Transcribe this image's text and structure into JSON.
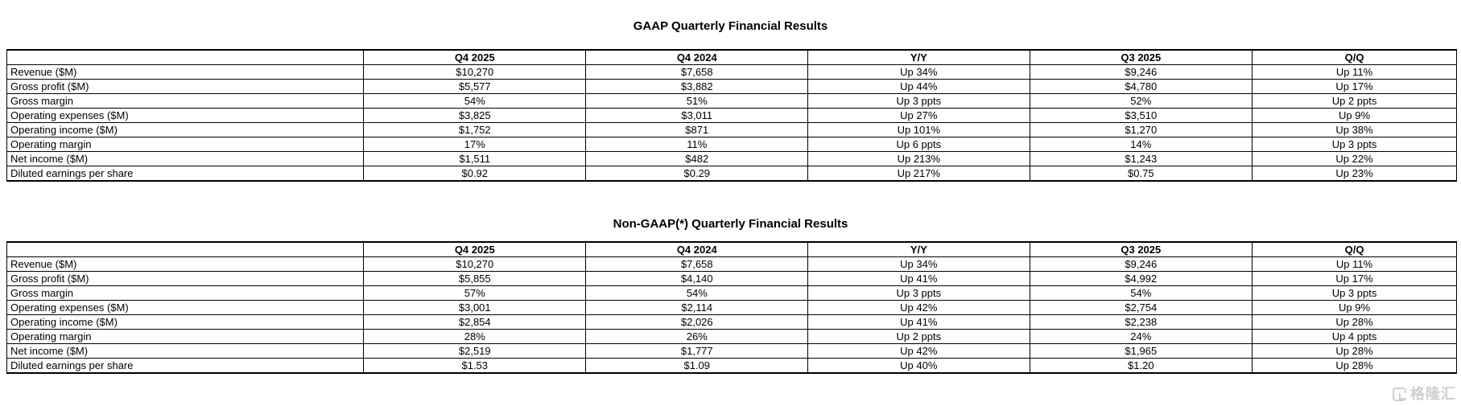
{
  "watermark": {
    "text": "格隆汇",
    "color": "#cbcbcb"
  },
  "tables": [
    {
      "title": "GAAP Quarterly Financial Results",
      "columns": [
        "",
        "Q4 2025",
        "Q4 2024",
        "Y/Y",
        "Q3 2025",
        "Q/Q"
      ],
      "rows": [
        [
          "Revenue ($M)",
          "$10,270",
          "$7,658",
          "Up 34%",
          "$9,246",
          "Up 11%"
        ],
        [
          "Gross profit ($M)",
          "$5,577",
          "$3,882",
          "Up 44%",
          "$4,780",
          "Up 17%"
        ],
        [
          "Gross margin",
          "54%",
          "51%",
          "Up 3 ppts",
          "52%",
          "Up 2 ppts"
        ],
        [
          "Operating expenses ($M)",
          "$3,825",
          "$3,011",
          "Up 27%",
          "$3,510",
          "Up 9%"
        ],
        [
          "Operating income ($M)",
          "$1,752",
          "$871",
          "Up 101%",
          "$1,270",
          "Up 38%"
        ],
        [
          "Operating margin",
          "17%",
          "11%",
          "Up 6 ppts",
          "14%",
          "Up 3 ppts"
        ],
        [
          "Net income ($M)",
          "$1,511",
          "$482",
          "Up 213%",
          "$1,243",
          "Up 22%"
        ],
        [
          "Diluted earnings per share",
          "$0.92",
          "$0.29",
          "Up 217%",
          "$0.75",
          "Up 23%"
        ]
      ]
    },
    {
      "title": "Non-GAAP(*) Quarterly Financial Results",
      "columns": [
        "",
        "Q4 2025",
        "Q4 2024",
        "Y/Y",
        "Q3 2025",
        "Q/Q"
      ],
      "rows": [
        [
          "Revenue ($M)",
          "$10,270",
          "$7,658",
          "Up 34%",
          "$9,246",
          "Up 11%"
        ],
        [
          "Gross profit ($M)",
          "$5,855",
          "$4,140",
          "Up 41%",
          "$4,992",
          "Up 17%"
        ],
        [
          "Gross margin",
          "57%",
          "54%",
          "Up 3 ppts",
          "54%",
          "Up 3 ppts"
        ],
        [
          "Operating expenses ($M)",
          "$3,001",
          "$2,114",
          "Up 42%",
          "$2,754",
          "Up 9%"
        ],
        [
          "Operating income ($M)",
          "$2,854",
          "$2,026",
          "Up 41%",
          "$2,238",
          "Up 28%"
        ],
        [
          "Operating margin",
          "28%",
          "26%",
          "Up 2 ppts",
          "24%",
          "Up 4 ppts"
        ],
        [
          "Net income ($M)",
          "$2,519",
          "$1,777",
          "Up 42%",
          "$1,965",
          "Up 28%"
        ],
        [
          "Diluted earnings per share",
          "$1.53",
          "$1.09",
          "Up 40%",
          "$1.20",
          "Up 28%"
        ]
      ]
    }
  ]
}
